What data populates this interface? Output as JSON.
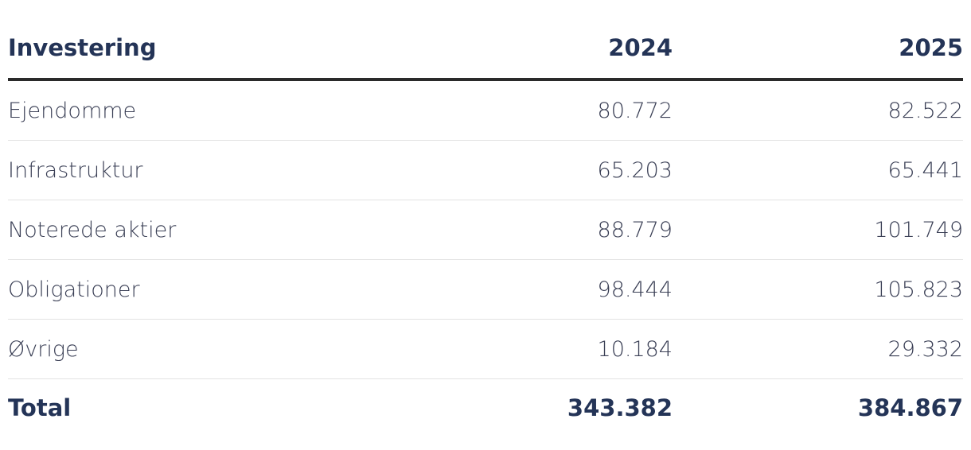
{
  "table": {
    "header": {
      "label": "Investering",
      "col_2024": "2024",
      "col_2025": "2025"
    },
    "rows": [
      {
        "label": "Ejendomme",
        "v2024": "80.772",
        "v2025": "82.522"
      },
      {
        "label": "Infrastruktur",
        "v2024": "65.203",
        "v2025": "65.441"
      },
      {
        "label": "Noterede aktier",
        "v2024": "88.779",
        "v2025": "101.749"
      },
      {
        "label": "Obligationer",
        "v2024": "98.444",
        "v2025": "105.823"
      },
      {
        "label": "Øvrige",
        "v2024": "10.184",
        "v2025": "29.332"
      }
    ],
    "total": {
      "label": "Total",
      "v2024": "343.382",
      "v2025": "384.867"
    }
  },
  "colors": {
    "header_text": "#243457",
    "body_text": "#3a3f55",
    "header_rule": "#2a2a2a",
    "row_rule": "#e3e3e3"
  }
}
